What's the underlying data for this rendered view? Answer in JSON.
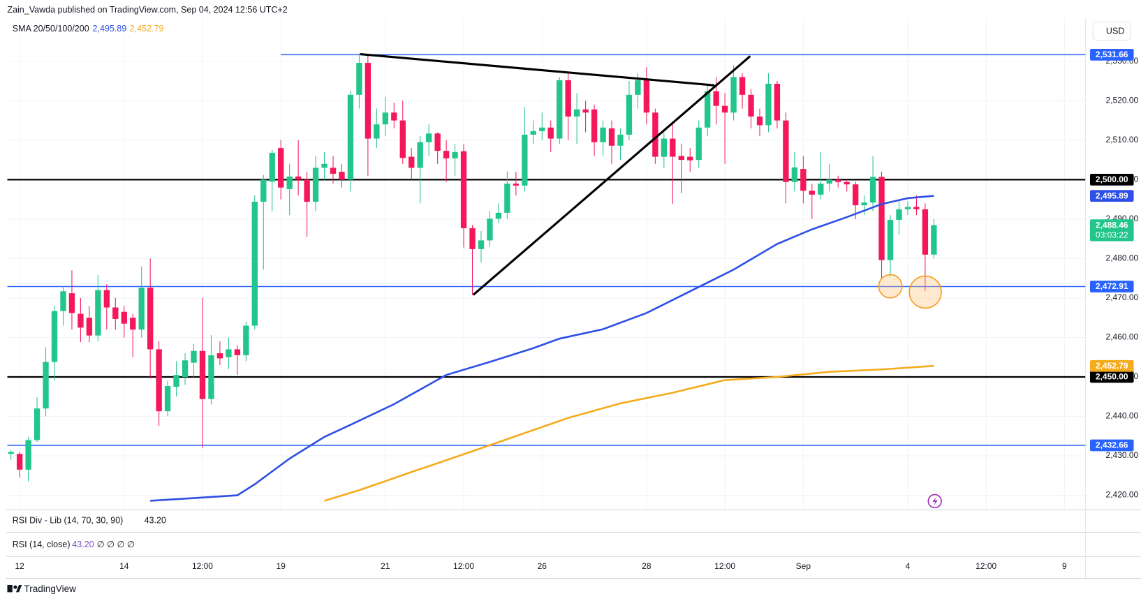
{
  "header": {
    "publisher": "Zain_Vawda published on TradingView.com, Sep 04, 2024 12:56 UTC+2",
    "indicator": "SMA 20/50/100/200",
    "currency": "USD"
  },
  "chart_data": {
    "type": "candlestick",
    "xlim": [
      -0.42,
      123.43
    ],
    "ylim": [
      2416.3,
      2540.9
    ],
    "grid": true,
    "up_color": "#22c58b",
    "down_color": "#f5175b",
    "open": [
      2430.5,
      2430.5,
      2426.5,
      2434,
      2442,
      2453.8,
      2466.7,
      2471.2,
      2466,
      2465,
      2460.5,
      2472,
      2467.6,
      2466.5,
      2465,
      2462,
      2472.6,
      2457,
      2441.3,
      2447.5,
      2450,
      2453.6,
      2456.6,
      2444.4,
      2456,
      2455,
      2457,
      2455.5,
      2463,
      2494.4,
      2499.5,
      2508,
      2497.6,
      2500.8,
      2500,
      2494.4,
      2503,
      2503,
      2502,
      2500,
      2521.5,
      2529.6,
      2510.4,
      2514,
      2517,
      2515,
      2505.8,
      2503,
      2509.5,
      2511.7,
      2507.3,
      2505.4,
      2507.2,
      2487.7,
      2482.4,
      2484.6,
      2490.1,
      2491.6,
      2499,
      2498.5,
      2511.4,
      2512.3,
      2513.2,
      2510.4,
      2525.2,
      2516,
      2517.8,
      2517.8,
      2509.5,
      2513,
      2508.6,
      2511.4,
      2521.5,
      2525.2,
      2517,
      2505.8,
      2510.4,
      2506,
      2505.8,
      2505,
      2513.2,
      2522.4,
      2518.7,
      2517,
      2526,
      2521.5,
      2516,
      2513.8,
      2524.3,
      2515,
      2499.4,
      2502.7,
      2497.2,
      2496.2,
      2499,
      2500,
      2499.4,
      2498.8,
      2493.5,
      2494.2,
      2500.7,
      2479.6,
      2489.8,
      2492.5,
      2493.1,
      2492.5,
      2481
    ],
    "high": [
      2431.5,
      2431,
      2434.8,
      2444.8,
      2457.5,
      2468,
      2473,
      2477,
      2470,
      2468,
      2475.8,
      2473.5,
      2470,
      2468,
      2466,
      2478,
      2480,
      2459,
      2449,
      2454,
      2456,
      2458.4,
      2470,
      2460.6,
      2459,
      2460,
      2458,
      2464,
      2496,
      2501.2,
      2507.5,
      2510,
      2504,
      2510,
      2502,
      2506,
      2507,
      2506,
      2504,
      2522.5,
      2532,
      2531.5,
      2518,
      2521,
      2519.5,
      2520,
      2508,
      2511,
      2514,
      2512,
      2510,
      2509,
      2509,
      2488.5,
      2487,
      2492,
      2494,
      2502.1,
      2502,
      2518.4,
      2515,
      2517,
      2515,
      2526,
      2527,
      2522,
      2520,
      2519,
      2515,
      2515,
      2513,
      2525,
      2527,
      2528.5,
      2518,
      2512,
      2514,
      2509,
      2508,
      2515,
      2524,
      2526,
      2522,
      2529,
      2527,
      2523,
      2518,
      2527,
      2525,
      2517,
      2507,
      2506,
      2499,
      2507,
      2504,
      2501,
      2500,
      2499.5,
      2496,
      2506,
      2502,
      2491,
      2494.5,
      2494.5,
      2496,
      2494,
      2490
    ],
    "low": [
      2429,
      2424.5,
      2423.5,
      2433.5,
      2440,
      2449,
      2463,
      2462,
      2458.8,
      2458.8,
      2459,
      2462,
      2462,
      2460,
      2455,
      2460,
      2449.6,
      2437.6,
      2440,
      2445,
      2448,
      2450,
      2432,
      2443,
      2453,
      2452,
      2450.5,
      2454,
      2462,
      2477.2,
      2492,
      2495,
      2491,
      2496,
      2485.5,
      2492,
      2500,
      2499,
      2498,
      2497,
      2518,
      2501,
      2508,
      2511,
      2513,
      2504,
      2500,
      2494,
      2506,
      2504,
      2499.4,
      2501,
      2482.8,
      2470.8,
      2479,
      2483,
      2489,
      2490,
      2496,
      2497,
      2509,
      2510,
      2507,
      2509,
      2510,
      2509,
      2512,
      2506,
      2506,
      2504,
      2505,
      2510,
      2518,
      2514,
      2504,
      2503,
      2493.8,
      2496.6,
      2502,
      2503,
      2511,
      2514,
      2504,
      2515,
      2518,
      2513,
      2511,
      2512,
      2513,
      2494,
      2497,
      2494,
      2490,
      2495,
      2497,
      2498,
      2497,
      2490,
      2491,
      2492,
      2475,
      2475.4,
      2486,
      2491,
      2491,
      2471.7,
      2480
    ],
    "close": [
      2431,
      2426.5,
      2434,
      2442,
      2453.8,
      2466.7,
      2471.7,
      2466.2,
      2462.5,
      2460.5,
      2472,
      2467.6,
      2464.7,
      2463.5,
      2462,
      2472.6,
      2457,
      2441.3,
      2447.7,
      2450.5,
      2454.2,
      2456.6,
      2444.4,
      2455.5,
      2454.7,
      2457,
      2455.5,
      2463,
      2494.4,
      2500,
      2506.8,
      2498,
      2500.8,
      2500,
      2494.4,
      2503,
      2504,
      2501.5,
      2500,
      2521.5,
      2529.6,
      2510.4,
      2514,
      2517,
      2515,
      2505.5,
      2503,
      2509.5,
      2511.7,
      2507.3,
      2505.4,
      2507,
      2487.7,
      2482.4,
      2484.6,
      2490.1,
      2491.6,
      2499,
      2498.5,
      2511.4,
      2512.3,
      2513.2,
      2510.4,
      2525.2,
      2516,
      2517.8,
      2517,
      2509.5,
      2513.2,
      2508.6,
      2511.4,
      2521.5,
      2525.2,
      2517,
      2505.8,
      2510.4,
      2505.8,
      2505,
      2504.9,
      2513.2,
      2522.4,
      2518.7,
      2517,
      2526,
      2521.5,
      2516,
      2513.8,
      2524.3,
      2515,
      2499.4,
      2503.1,
      2497.2,
      2496.2,
      2499,
      2500,
      2499.4,
      2498.8,
      2493.5,
      2494.2,
      2500.7,
      2479.6,
      2489.8,
      2492.5,
      2493.1,
      2492.5,
      2481,
      2488.46
    ],
    "series": [
      {
        "color": "#2e4fe6",
        "last_label": "2,495.89",
        "x": [
          16,
          26,
          28,
          32,
          36,
          40,
          44,
          50,
          55,
          60,
          63,
          68,
          73,
          78,
          83,
          88,
          92,
          96,
          100,
          103,
          106
        ],
        "values": [
          2418.6,
          2420,
          2422.8,
          2429.3,
          2434.8,
          2438.9,
          2443.1,
          2450.5,
          2453.8,
          2457.3,
          2459.7,
          2462.1,
          2466.2,
          2471.7,
          2477.2,
          2483.7,
          2487.4,
          2490.5,
          2493.8,
          2495.3,
          2495.89
        ]
      },
      {
        "color": "#f5ab1b",
        "last_label": "2,452.79",
        "x": [
          36,
          40,
          46,
          52,
          58,
          64,
          70,
          76,
          82,
          88,
          94,
          100,
          106
        ],
        "values": [
          2418.6,
          2421.3,
          2425.9,
          2430.4,
          2435,
          2439.6,
          2443.3,
          2446,
          2449.2,
          2450,
          2451.3,
          2451.9,
          2452.79
        ]
      }
    ],
    "levels": [
      {
        "value": 2531.66,
        "label": "2,531.66",
        "color": "#2962ff",
        "from": 31
      },
      {
        "value": 2500,
        "label": "2,500.00",
        "color": "#000000"
      },
      {
        "value": 2472.91,
        "label": "2,472.91",
        "color": "#2962ff"
      },
      {
        "value": 2450,
        "label": "2,450.00",
        "color": "#000000"
      },
      {
        "value": 2432.66,
        "label": "2,432.66",
        "color": "#2962ff"
      }
    ],
    "trendlines": [
      {
        "x": [
          40.1,
          80.8
        ],
        "values": [
          2531.8,
          2523.9
        ]
      },
      {
        "x": [
          53.1,
          84.9
        ],
        "values": [
          2470.8,
          2531.3
        ]
      }
    ],
    "last_price": {
      "value": 2488.46,
      "label": "2,488.46",
      "countdown": "03:03:22"
    },
    "yticks": [
      {
        "value": 2420,
        "label": "2,420.00"
      },
      {
        "value": 2430,
        "label": "2,430.00"
      },
      {
        "value": 2440,
        "label": "2,440.00"
      },
      {
        "value": 2450,
        "label": "2,450.00"
      },
      {
        "value": 2460,
        "label": "2,460.00"
      },
      {
        "value": 2470,
        "label": "2,470.00"
      },
      {
        "value": 2480,
        "label": "2,480.00"
      },
      {
        "value": 2490,
        "label": "2,490.00"
      },
      {
        "value": 2500,
        "label": "2,500.00"
      },
      {
        "value": 2510,
        "label": "2,510.00"
      },
      {
        "value": 2520,
        "label": "2,520.00"
      },
      {
        "value": 2530,
        "label": "2,530.00"
      }
    ],
    "xticks": [
      {
        "value": 1,
        "label": "12"
      },
      {
        "value": 13,
        "label": "14"
      },
      {
        "value": 22,
        "label": "12:00"
      },
      {
        "value": 31,
        "label": "19"
      },
      {
        "value": 43,
        "label": "21"
      },
      {
        "value": 52,
        "label": "12:00"
      },
      {
        "value": 61,
        "label": "26"
      },
      {
        "value": 73,
        "label": "28"
      },
      {
        "value": 82,
        "label": "12:00"
      },
      {
        "value": 91,
        "label": "Sep"
      },
      {
        "value": 103,
        "label": "4"
      },
      {
        "value": 112,
        "label": "12:00"
      },
      {
        "value": 121,
        "label": "9"
      }
    ]
  },
  "panes": [
    {
      "name": "RSI Div - Lib (14, 70, 30, 90)",
      "value": "43.20"
    },
    {
      "name": "RSI (14, close)",
      "value": "43.20",
      "extra": "∅ ∅ ∅ ∅"
    }
  ],
  "footer": "TradingView"
}
